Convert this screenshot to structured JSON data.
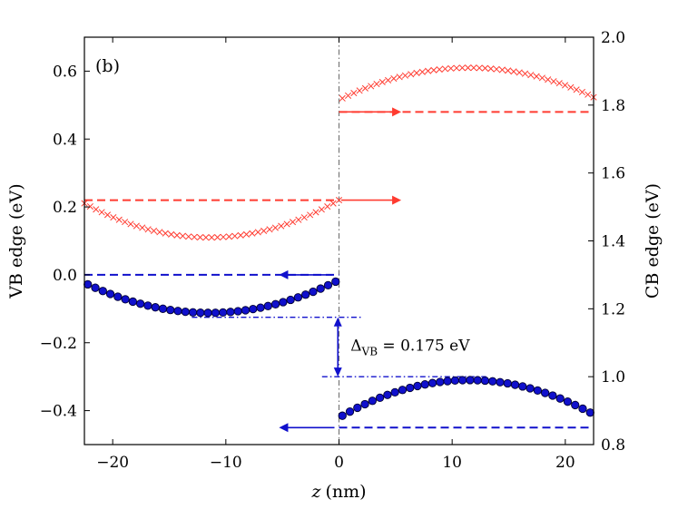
{
  "chart_data": {
    "type": "scatter",
    "panel_label": "(b)",
    "xlabel_var": "z",
    "xlabel_unit": "(nm)",
    "ylabel_left": "VB edge (eV)",
    "ylabel_right": "CB edge (eV)",
    "xlim": [
      -22.5,
      22.5
    ],
    "ylim_left": [
      -0.5,
      0.7
    ],
    "ylim_right": [
      0.8,
      2.0
    ],
    "x_ticks": [
      {
        "value": -20,
        "label": "−20"
      },
      {
        "value": -10,
        "label": "−10"
      },
      {
        "value": 0,
        "label": "0"
      },
      {
        "value": 10,
        "label": "10"
      },
      {
        "value": 20,
        "label": "20"
      }
    ],
    "y_left_ticks": [
      {
        "value": 0.6,
        "label": "0.6"
      },
      {
        "value": 0.4,
        "label": "0.4"
      },
      {
        "value": 0.2,
        "label": "0.2"
      },
      {
        "value": 0.0,
        "label": "0.0"
      },
      {
        "value": -0.2,
        "label": "−0.2"
      },
      {
        "value": -0.4,
        "label": "−0.4"
      }
    ],
    "y_right_ticks": [
      {
        "value": 2.0,
        "label": "2.0"
      },
      {
        "value": 1.8,
        "label": "1.8"
      },
      {
        "value": 1.6,
        "label": "1.6"
      },
      {
        "value": 1.4,
        "label": "1.4"
      },
      {
        "value": 1.2,
        "label": "1.2"
      },
      {
        "value": 1.0,
        "label": "1.0"
      },
      {
        "value": 0.8,
        "label": "0.8"
      }
    ],
    "series": [
      {
        "name": "CB edge, left layer",
        "marker": "x",
        "color": "#ff3b30",
        "axis": "right",
        "x_range": [
          -22.5,
          0
        ],
        "y_ends": 1.52,
        "y_extreme": 1.41,
        "x_extreme": -11.5
      },
      {
        "name": "CB edge, right layer",
        "marker": "x",
        "color": "#ff3b30",
        "axis": "right",
        "x_range": [
          0.3,
          22.5
        ],
        "y_ends": 1.82,
        "y_extreme": 1.91,
        "x_extreme": 11.5
      },
      {
        "name": "VB edge, left layer",
        "marker": "o",
        "color": "#1010cc",
        "axis": "left",
        "x_range": [
          -22.2,
          -0.3
        ],
        "y_ends": -0.02,
        "y_extreme": -0.112,
        "x_extreme": -11.5
      },
      {
        "name": "VB edge, right layer",
        "marker": "o",
        "color": "#1010cc",
        "axis": "left",
        "x_range": [
          0.3,
          22.2
        ],
        "y_ends": -0.415,
        "y_extreme": -0.31,
        "x_extreme": 11.5
      }
    ],
    "reference_lines": [
      {
        "name": "CB level right",
        "axis": "right",
        "y": 1.78,
        "x_from": 0,
        "x_to": 22.5,
        "color": "#ff3b30",
        "style": "dashed"
      },
      {
        "name": "CB level left",
        "axis": "right",
        "y": 1.52,
        "x_from": -22.5,
        "x_to": 0,
        "color": "#ff3b30",
        "style": "dashed"
      },
      {
        "name": "VB level left",
        "axis": "left",
        "y": 0.0,
        "x_from": -22.5,
        "x_to": 0,
        "color": "#1010cc",
        "style": "dashed"
      },
      {
        "name": "VB level right",
        "axis": "left",
        "y": -0.45,
        "x_from": 0,
        "x_to": 22.5,
        "color": "#1010cc",
        "style": "dashed"
      },
      {
        "name": "VB minimum marker",
        "axis": "left",
        "y": -0.125,
        "x_from": -13,
        "x_to": 2,
        "color": "#1010cc",
        "style": "dashdot"
      },
      {
        "name": "VB maximum marker",
        "axis": "left",
        "y": -0.3,
        "x_from": -1.5,
        "x_to": 13,
        "color": "#1010cc",
        "style": "dashdot"
      }
    ],
    "arrows": [
      {
        "name": "CB arrow right",
        "axis": "right",
        "y": 1.78,
        "x_from": 0.2,
        "x_to": 5.5,
        "color": "#ff3b30"
      },
      {
        "name": "CB arrow left",
        "axis": "right",
        "y": 1.52,
        "x_from": 0.2,
        "x_to": 5.5,
        "color": "#ff3b30"
      },
      {
        "name": "VB arrow top",
        "axis": "left",
        "y": 0.0,
        "x_from": -0.6,
        "x_to": -5.3,
        "color": "#1010cc"
      },
      {
        "name": "VB arrow bottom",
        "axis": "left",
        "y": -0.45,
        "x_from": -0.4,
        "x_to": -5.3,
        "color": "#1010cc"
      }
    ],
    "vertical_divider": {
      "x": 0,
      "style": "dashdot",
      "color": "#777777"
    },
    "delta_annotation": {
      "label_main": "Δ",
      "label_sub": "VB",
      "label_value": " = 0.175 eV",
      "value_ev": 0.175,
      "x": -0.1,
      "y_top": -0.125,
      "y_bottom": -0.3
    }
  }
}
